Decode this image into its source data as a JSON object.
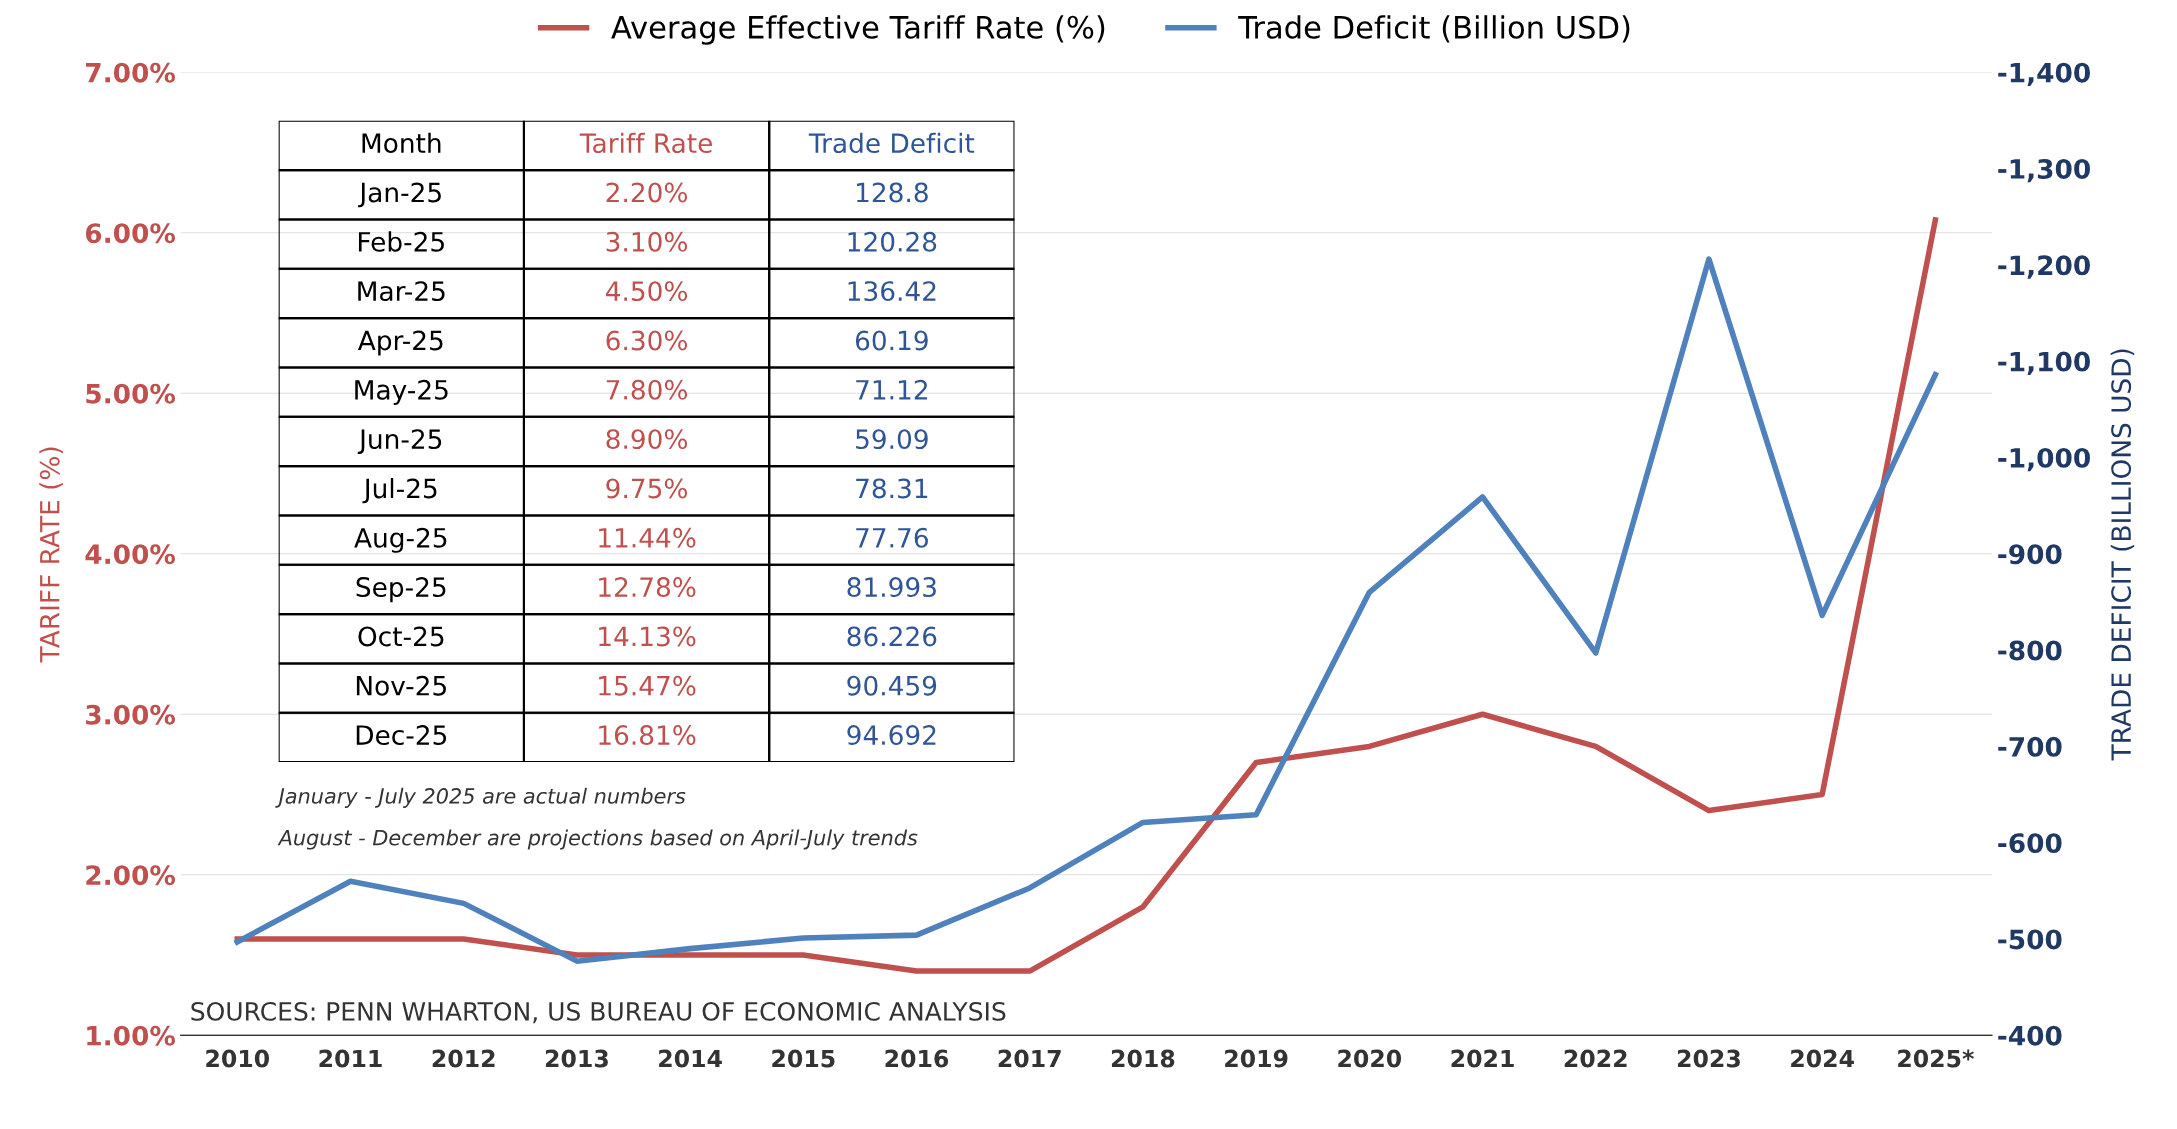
{
  "chart_data": [
    {
      "type": "line",
      "categories": [
        "2010",
        "2011",
        "2012",
        "2013",
        "2014",
        "2015",
        "2016",
        "2017",
        "2018",
        "2019",
        "2020",
        "2021",
        "2022",
        "2023",
        "2024",
        "2025*"
      ],
      "series": [
        {
          "name": "Average Effective Tariff Rate (%)",
          "color": "#c0504d",
          "values": [
            1.6,
            1.6,
            1.6,
            1.5,
            1.5,
            1.5,
            1.4,
            1.4,
            1.8,
            2.7,
            2.8,
            3.0,
            2.8,
            2.4,
            2.5,
            6.08
          ]
        },
        {
          "name": "Trade Deficit (Billion USD)",
          "color": "#4f81bd",
          "axis": "y2",
          "values": [
            -497,
            -560,
            -537,
            -477,
            -490,
            -501,
            -504,
            -553,
            -621,
            -629,
            -860,
            -959,
            -797,
            -1206,
            -836,
            -1086
          ]
        }
      ],
      "ylabel": "TARIFF RATE (%)",
      "y2label": "TRADE DEFICIT (BILLIONS USD)",
      "ylim": [
        1,
        7
      ],
      "yticks": [
        {
          "value": 1,
          "label": "1.00%"
        },
        {
          "value": 2,
          "label": "2.00%"
        },
        {
          "value": 3,
          "label": "3.00%"
        },
        {
          "value": 4,
          "label": "4.00%"
        },
        {
          "value": 5,
          "label": "5.00%"
        },
        {
          "value": 6,
          "label": "6.00%"
        },
        {
          "value": 7,
          "label": "7.00%"
        }
      ],
      "y2lim": [
        -400,
        -1400
      ],
      "y2ticks": [
        {
          "value": -400,
          "label": "-400"
        },
        {
          "value": -500,
          "label": "-500"
        },
        {
          "value": -600,
          "label": "-600"
        },
        {
          "value": -700,
          "label": "-700"
        },
        {
          "value": -800,
          "label": "-800"
        },
        {
          "value": -900,
          "label": "-900"
        },
        {
          "value": -1000,
          "label": "-1,000"
        },
        {
          "value": -1100,
          "label": "-1,100"
        },
        {
          "value": -1200,
          "label": "-1,200"
        },
        {
          "value": -1300,
          "label": "-1,300"
        },
        {
          "value": -1400,
          "label": "-1,400"
        }
      ],
      "grid": "y",
      "legend": "top",
      "marker": "none",
      "line_style": "solid",
      "annotations": [
        "SOURCES: PENN WHARTON, US BUREAU OF ECONOMIC ANALYSIS"
      ]
    },
    {
      "type": "other",
      "categories": [
        "Month",
        "Tariff Rate",
        "Trade Deficit"
      ],
      "colors": [
        "#000000",
        "#c0504d",
        "#2f5597"
      ],
      "cell_labels": [
        [
          "Jan-25",
          "2.20%",
          "128.8"
        ],
        [
          "Feb-25",
          "3.10%",
          "120.28"
        ],
        [
          "Mar-25",
          "4.50%",
          "136.42"
        ],
        [
          "Apr-25",
          "6.30%",
          "60.19"
        ],
        [
          "May-25",
          "7.80%",
          "71.12"
        ],
        [
          "Jun-25",
          "8.90%",
          "59.09"
        ],
        [
          "Jul-25",
          "9.75%",
          "78.31"
        ],
        [
          "Aug-25",
          "11.44%",
          "77.76"
        ],
        [
          "Sep-25",
          "12.78%",
          "81.993"
        ],
        [
          "Oct-25",
          "14.13%",
          "86.226"
        ],
        [
          "Nov-25",
          "15.47%",
          "90.459"
        ],
        [
          "Dec-25",
          "16.81%",
          "94.692"
        ]
      ],
      "annotations": [
        "January - July 2025 are actual numbers",
        "August - December are projections based on April-July trends"
      ]
    }
  ]
}
